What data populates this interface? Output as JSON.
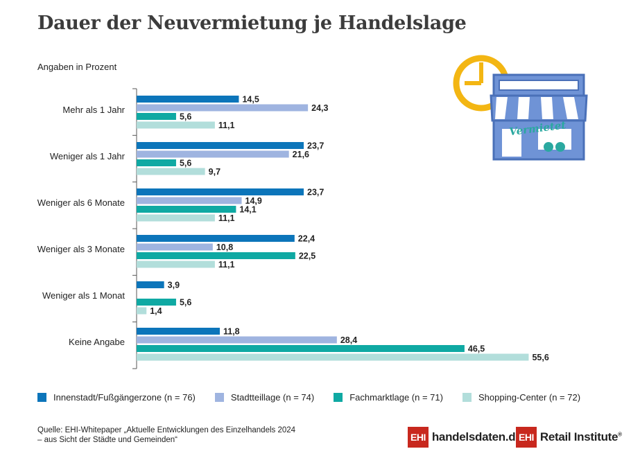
{
  "title": "Dauer der Neuvermietung je Handelslage",
  "subtitle": "Angaben in Prozent",
  "chart_data": {
    "type": "bar",
    "orientation": "horizontal",
    "title": "Dauer der Neuvermietung je Handelslage",
    "subtitle": "Angaben in Prozent",
    "categories": [
      "Mehr als 1 Jahr",
      "Weniger als 1 Jahr",
      "Weniger als 6 Monate",
      "Weniger als 3 Monate",
      "Weniger als 1 Monat",
      "Keine Angabe"
    ],
    "series": [
      {
        "name": "Innenstadt/Fußgängerzone (n = 76)",
        "color": "#0c75ba",
        "values": [
          14.5,
          23.7,
          23.7,
          22.4,
          3.9,
          11.8
        ],
        "labels": [
          "14,5",
          "23,7",
          "23,7",
          "22,4",
          "3,9",
          "11,8"
        ]
      },
      {
        "name": "Stadtteillage (n = 74)",
        "color": "#9fb4e0",
        "values": [
          24.3,
          21.6,
          14.9,
          10.8,
          null,
          28.4
        ],
        "labels": [
          "24,3",
          "21,6",
          "14,9",
          "10,8",
          "",
          "28,4"
        ]
      },
      {
        "name": "Fachmarktlage (n = 71)",
        "color": "#0fa9a3",
        "values": [
          5.6,
          5.6,
          14.1,
          22.5,
          5.6,
          46.5
        ],
        "labels": [
          "5,6",
          "5,6",
          "14,1",
          "22,5",
          "5,6",
          "46,5"
        ]
      },
      {
        "name": "Shopping-Center (n = 72)",
        "color": "#b2dedb",
        "values": [
          11.1,
          9.7,
          11.1,
          11.1,
          1.4,
          55.6
        ],
        "labels": [
          "11,1",
          "9,7",
          "11,1",
          "11,1",
          "1,4",
          "55,6"
        ]
      }
    ],
    "xlim": [
      0,
      60
    ],
    "grid": false,
    "legend_position": "bottom"
  },
  "source": "Quelle: EHI-Whitepaper „Aktuelle Entwicklungen des Einzelhandels 2024\n– aus Sicht der Städte und Gemeinden“",
  "brands": [
    {
      "box": "EHI",
      "text": "handelsdaten.de",
      "reg": ""
    },
    {
      "box": "EHI",
      "text": "Retail Institute",
      "reg": "®"
    }
  ],
  "illustration": {
    "sign_text": "Vermietet",
    "clock_color": "#f3b613",
    "shop_color": "#6f93d6",
    "sign_color": "#2aa8a0"
  }
}
